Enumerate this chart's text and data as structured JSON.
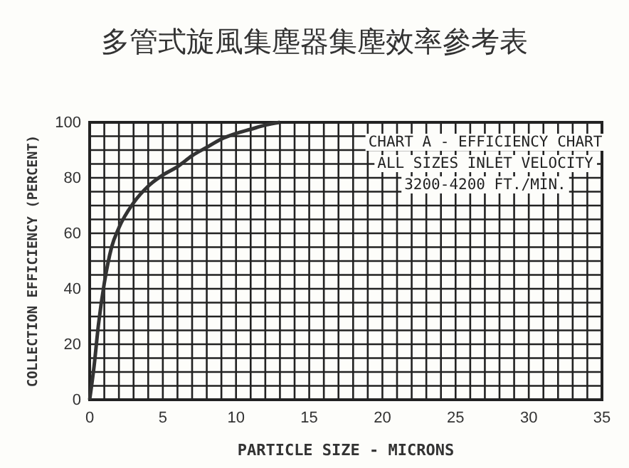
{
  "chart_data": {
    "type": "line",
    "title": "多管式旋風集塵器集塵效率參考表",
    "xlabel": "PARTICLE SIZE - MICRONS",
    "ylabel": "COLLECTION EFFICIENCY (PERCENT)",
    "annotations": [
      "CHART A - EFFICIENCY CHART",
      "ALL SIZES INLET VELOCITY",
      "3200-4200 FT./MIN."
    ],
    "x": [
      0,
      0.3,
      0.6,
      1,
      1.5,
      2,
      3,
      4,
      5,
      6,
      7,
      8,
      9,
      10,
      11,
      12,
      13
    ],
    "series": [
      {
        "color": "#333333",
        "values": [
          0,
          12,
          27,
          42,
          55,
          62,
          71,
          77,
          81,
          84,
          88,
          91,
          94,
          96,
          97.5,
          99,
          100
        ]
      }
    ],
    "xlim": [
      0,
      35
    ],
    "xticks": [
      0,
      5,
      10,
      15,
      20,
      25,
      30,
      35
    ],
    "ylim": [
      0,
      100
    ],
    "yticks": [
      0,
      20,
      40,
      60,
      80,
      100
    ],
    "grid": true,
    "marker": "none",
    "line_style": "solid"
  }
}
